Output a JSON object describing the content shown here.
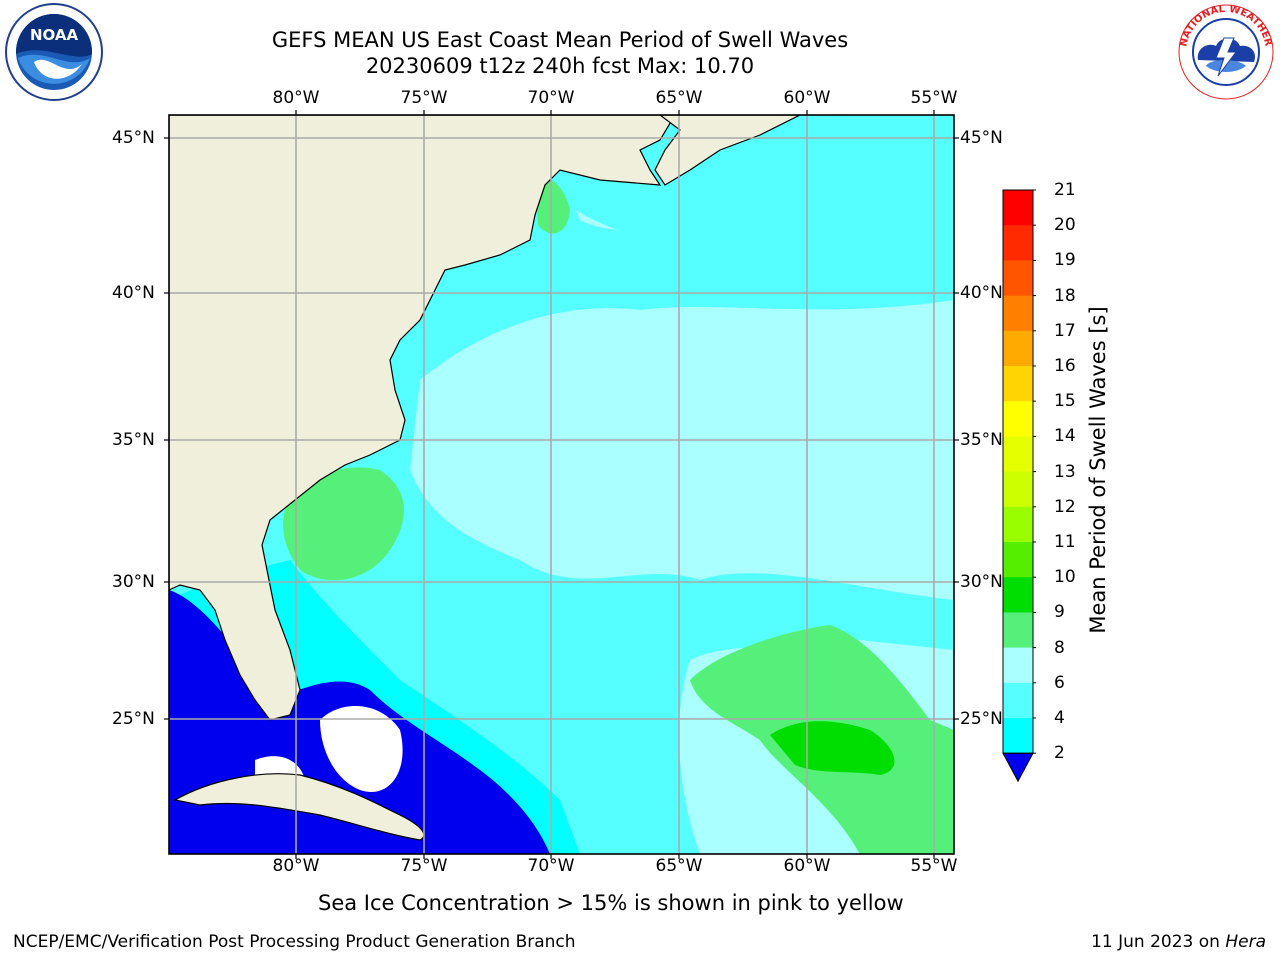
{
  "header": {
    "title_line1": "GEFS MEAN US East Coast Mean Period of Swell Waves",
    "title_line2": "20230609 t12z 240h fcst   Max: 10.70"
  },
  "map": {
    "lon_labels": [
      "80°W",
      "75°W",
      "70°W",
      "65°W",
      "60°W",
      "55°W"
    ],
    "lat_labels": [
      "45°N",
      "40°N",
      "35°N",
      "30°N",
      "25°N"
    ],
    "colors": {
      "land": "#efefdc",
      "ice_free": "#ffffff",
      "gridline": "#aaaaaa",
      "coastline": "#000000"
    }
  },
  "colorbar": {
    "title": "Mean Period of Swell Waves [s]",
    "ticks": [
      "21",
      "20",
      "19",
      "18",
      "17",
      "16",
      "15",
      "14",
      "13",
      "12",
      "11",
      "10",
      "9",
      "8",
      "6",
      "4",
      "2"
    ],
    "colors": [
      "#ff0000",
      "#ff2a00",
      "#ff5500",
      "#ff7f00",
      "#ffaa00",
      "#ffd400",
      "#ffff00",
      "#e6ff00",
      "#ccff00",
      "#99ff00",
      "#55ee00",
      "#00dd00",
      "#55f07a",
      "#aaffff",
      "#55ffff",
      "#00ffff",
      "#0000ee"
    ]
  },
  "footer": {
    "note": "Sea Ice Concentration > 15% is shown in pink to yellow",
    "left": "NCEP/EMC/Verification Post Processing Product Generation Branch",
    "right_date": "11 Jun 2023 on ",
    "right_host": "Hera"
  },
  "logos": {
    "left": "NOAA",
    "right": "NATIONAL WEATHER SERVICE"
  }
}
